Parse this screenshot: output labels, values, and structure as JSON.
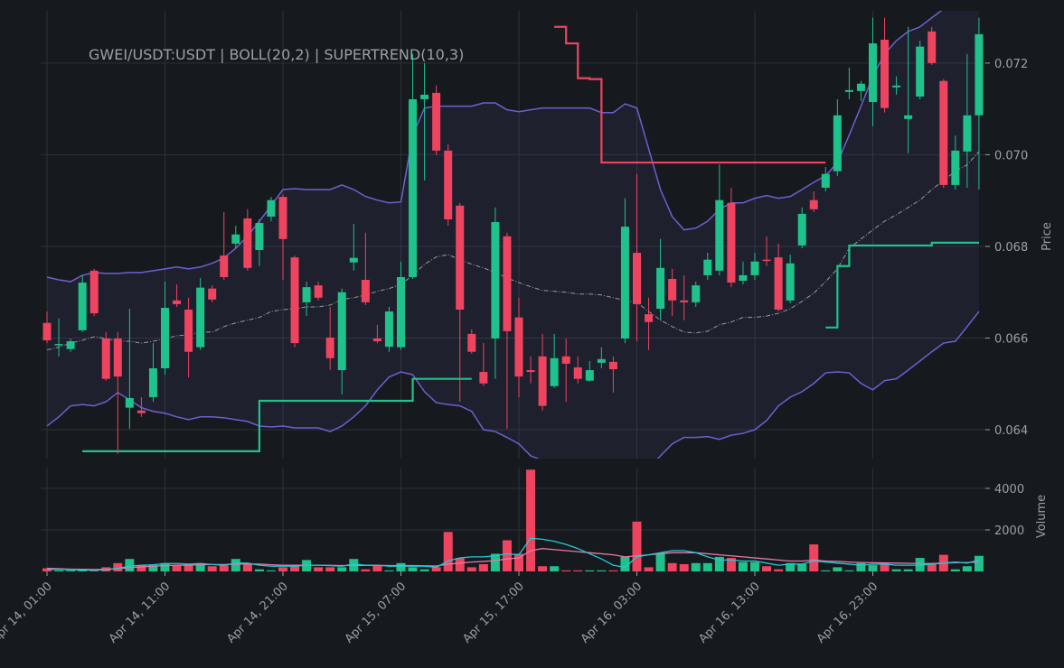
{
  "chart_data": [
    {
      "type": "candlestick",
      "title": "GWEI/USDT:USDT | BOLL(20,2) | SUPERTREND(10,3)",
      "y_label": "Price",
      "up_color": "#1fc28a",
      "down_color": "#ef4460",
      "band_color": "#6e5fcf",
      "mid_color": "#9a9a9a",
      "ylim": [
        0.06337,
        0.07314
      ],
      "yticks": [
        0.064,
        0.066,
        0.068,
        {
          "value": 0.07,
          "label": "0.070"
        },
        0.072
      ],
      "grid": true,
      "open": [
        0.06633,
        0.06585,
        0.06576,
        0.06617,
        0.06747,
        0.06599,
        0.06599,
        0.06448,
        0.06442,
        0.06471,
        0.06534,
        0.06682,
        0.06662,
        0.0658,
        0.06708,
        0.0678,
        0.06806,
        0.06861,
        0.06792,
        0.06865,
        0.06908,
        0.06776,
        0.06678,
        0.06715,
        0.06601,
        0.0653,
        0.06765,
        0.06727,
        0.06599,
        0.06581,
        0.0658,
        0.06733,
        0.07121,
        0.07135,
        0.07009,
        0.06889,
        0.06609,
        0.06526,
        0.06599,
        0.06822,
        0.06645,
        0.0653,
        0.0656,
        0.06495,
        0.0656,
        0.06536,
        0.06507,
        0.06546,
        0.06548,
        0.06599,
        0.06786,
        0.06652,
        0.06664,
        0.06729,
        0.06682,
        0.06678,
        0.06737,
        0.06747,
        0.06895,
        0.06725,
        0.06737,
        0.06771,
        0.06776,
        0.06682,
        0.06802,
        0.06901,
        0.06928,
        0.06964,
        0.07137,
        0.07139,
        0.07115,
        0.07251,
        0.07147,
        0.07078,
        0.07127,
        0.07269,
        0.07161,
        0.06934,
        0.07007,
        0.07086
      ],
      "high": [
        0.06658,
        0.06643,
        0.06599,
        0.06737,
        0.06751,
        0.06613,
        0.06613,
        0.06664,
        0.06471,
        0.06589,
        0.06723,
        0.06717,
        0.06688,
        0.06731,
        0.06715,
        0.06875,
        0.06845,
        0.06881,
        0.06859,
        0.06908,
        0.06914,
        0.0678,
        0.06723,
        0.06723,
        0.06668,
        0.06708,
        0.06849,
        0.0683,
        0.06629,
        0.06668,
        0.06767,
        0.0722,
        0.072,
        0.07151,
        0.07023,
        0.06895,
        0.06619,
        0.06589,
        0.06885,
        0.0683,
        0.06688,
        0.0656,
        0.06609,
        0.06609,
        0.06599,
        0.0656,
        0.0655,
        0.0658,
        0.0656,
        0.06905,
        0.06958,
        0.06688,
        0.06816,
        0.06751,
        0.06737,
        0.06723,
        0.06786,
        0.06979,
        0.06928,
        0.06767,
        0.06786,
        0.06822,
        0.06806,
        0.06782,
        0.06885,
        0.0692,
        0.06973,
        0.07121,
        0.0719,
        0.07161,
        0.07299,
        0.07299,
        0.07171,
        0.07279,
        0.07249,
        0.07279,
        0.07165,
        0.07042,
        0.0722,
        0.07299
      ],
      "low": [
        0.06589,
        0.0656,
        0.0657,
        0.06613,
        0.06648,
        0.06507,
        0.06347,
        0.06402,
        0.06428,
        0.06461,
        0.0652,
        0.06668,
        0.06514,
        0.06574,
        0.06678,
        0.06727,
        0.06796,
        0.06747,
        0.06757,
        0.06855,
        0.06727,
        0.0658,
        0.06648,
        0.06682,
        0.0653,
        0.06477,
        0.06747,
        0.06672,
        0.06589,
        0.0657,
        0.06574,
        0.06729,
        0.06944,
        0.06999,
        0.06845,
        0.06461,
        0.06566,
        0.06495,
        0.06511,
        0.06402,
        0.06471,
        0.06501,
        0.06442,
        0.06491,
        0.06461,
        0.06501,
        0.06505,
        0.06534,
        0.06481,
        0.06589,
        0.06593,
        0.06574,
        0.06639,
        0.06648,
        0.06639,
        0.06668,
        0.06727,
        0.06737,
        0.06711,
        0.06717,
        0.06727,
        0.06757,
        0.06658,
        0.06676,
        0.06796,
        0.06875,
        0.0692,
        0.06954,
        0.07121,
        0.07117,
        0.07062,
        0.07092,
        0.07131,
        0.07003,
        0.07121,
        0.07196,
        0.06928,
        0.06924,
        0.06928,
        0.06924
      ],
      "close": [
        0.06595,
        0.06587,
        0.06593,
        0.06721,
        0.06654,
        0.06511,
        0.06516,
        0.06469,
        0.06436,
        0.06534,
        0.06666,
        0.06674,
        0.0657,
        0.0671,
        0.06684,
        0.06733,
        0.06826,
        0.06753,
        0.06851,
        0.06901,
        0.06816,
        0.06589,
        0.06711,
        0.06688,
        0.06556,
        0.067,
        0.06775,
        0.06678,
        0.06593,
        0.06658,
        0.06733,
        0.07121,
        0.07131,
        0.07009,
        0.06859,
        0.06662,
        0.0657,
        0.06501,
        0.06853,
        0.06615,
        0.06516,
        0.06526,
        0.06452,
        0.06556,
        0.06544,
        0.06511,
        0.0653,
        0.06554,
        0.06532,
        0.06843,
        0.06674,
        0.06635,
        0.06753,
        0.06682,
        0.06678,
        0.06715,
        0.06771,
        0.06901,
        0.06721,
        0.06737,
        0.06767,
        0.06769,
        0.06662,
        0.06763,
        0.06871,
        0.06881,
        0.06958,
        0.07086,
        0.07141,
        0.07155,
        0.07243,
        0.07102,
        0.07151,
        0.07086,
        0.07236,
        0.072,
        0.06934,
        0.07009,
        0.07086,
        0.07263
      ],
      "boll_upper": [
        0.06733,
        0.06727,
        0.06723,
        0.06737,
        0.06743,
        0.06741,
        0.06741,
        0.06743,
        0.06743,
        0.06747,
        0.06751,
        0.06755,
        0.06751,
        0.06755,
        0.06763,
        0.06775,
        0.06796,
        0.06822,
        0.06855,
        0.06889,
        0.06924,
        0.06926,
        0.06924,
        0.06924,
        0.06924,
        0.06934,
        0.06924,
        0.06909,
        0.06901,
        0.06895,
        0.06897,
        0.07043,
        0.07102,
        0.07106,
        0.07106,
        0.07106,
        0.07106,
        0.07113,
        0.07113,
        0.07098,
        0.07094,
        0.07098,
        0.07102,
        0.07102,
        0.07102,
        0.07102,
        0.07102,
        0.07092,
        0.07092,
        0.07111,
        0.07102,
        0.07013,
        0.06924,
        0.06865,
        0.06836,
        0.0684,
        0.06855,
        0.06881,
        0.06895,
        0.06895,
        0.06905,
        0.06911,
        0.06905,
        0.06909,
        0.06924,
        0.0694,
        0.06954,
        0.06983,
        0.07043,
        0.07106,
        0.07171,
        0.0722,
        0.07249,
        0.07269,
        0.07279,
        0.07299,
        0.07318,
        0.07328,
        0.07338,
        0.07348
      ],
      "boll_mid": [
        0.06574,
        0.0658,
        0.06589,
        0.06595,
        0.06603,
        0.06599,
        0.06593,
        0.06593,
        0.06589,
        0.06593,
        0.06599,
        0.06605,
        0.06607,
        0.06613,
        0.06613,
        0.06625,
        0.06633,
        0.06639,
        0.06645,
        0.06658,
        0.06662,
        0.06664,
        0.06668,
        0.06668,
        0.06672,
        0.06684,
        0.06688,
        0.06694,
        0.06702,
        0.06708,
        0.06717,
        0.06737,
        0.06761,
        0.06777,
        0.06782,
        0.06771,
        0.06761,
        0.06753,
        0.06743,
        0.06731,
        0.06721,
        0.06712,
        0.06704,
        0.06702,
        0.067,
        0.06696,
        0.06696,
        0.06694,
        0.06688,
        0.06682,
        0.06678,
        0.06658,
        0.06639,
        0.06625,
        0.06613,
        0.06611,
        0.06615,
        0.06629,
        0.06635,
        0.06645,
        0.06645,
        0.06648,
        0.06654,
        0.06664,
        0.0668,
        0.06698,
        0.06723,
        0.06751,
        0.06796,
        0.06816,
        0.06836,
        0.06855,
        0.06869,
        0.06885,
        0.06901,
        0.06924,
        0.06944,
        0.06964,
        0.06978,
        0.07007
      ],
      "boll_lower": [
        0.06408,
        0.06428,
        0.06452,
        0.06455,
        0.06452,
        0.06461,
        0.06481,
        0.06465,
        0.06448,
        0.0644,
        0.06436,
        0.06428,
        0.06422,
        0.06428,
        0.06428,
        0.06426,
        0.06422,
        0.06418,
        0.06408,
        0.06406,
        0.06408,
        0.06404,
        0.06404,
        0.06404,
        0.06396,
        0.06408,
        0.06428,
        0.06452,
        0.06487,
        0.06515,
        0.06526,
        0.0652,
        0.06483,
        0.06459,
        0.06455,
        0.06452,
        0.0644,
        0.064,
        0.06396,
        0.06383,
        0.06369,
        0.06343,
        0.06333,
        0.06314,
        0.06294,
        0.06274,
        0.06255,
        0.06245,
        0.06255,
        0.06274,
        0.06294,
        0.06314,
        0.06343,
        0.06369,
        0.06383,
        0.06383,
        0.06385,
        0.06379,
        0.06388,
        0.06392,
        0.064,
        0.0642,
        0.06452,
        0.06471,
        0.06483,
        0.06501,
        0.06524,
        0.06526,
        0.06524,
        0.06501,
        0.06487,
        0.06507,
        0.06511,
        0.0653,
        0.0655,
        0.0657,
        0.06589,
        0.06593,
        0.06625,
        0.06658
      ],
      "supertrend_up": [
        null,
        null,
        null,
        0.06353,
        0.06353,
        0.06353,
        0.06353,
        0.06353,
        0.06353,
        0.06353,
        0.06353,
        0.06353,
        0.06353,
        0.06353,
        0.06353,
        0.06353,
        0.06353,
        0.06353,
        0.06463,
        0.06463,
        0.06463,
        0.06463,
        0.06463,
        0.06463,
        0.06463,
        0.06463,
        0.06463,
        0.06463,
        0.06463,
        0.06463,
        0.06463,
        0.06511,
        0.06511,
        0.06511,
        0.06511,
        0.06511,
        0.06511,
        null,
        null,
        null,
        null,
        null,
        null,
        null,
        null,
        null,
        null,
        null,
        null,
        null,
        null,
        null,
        null,
        null,
        null,
        null,
        null,
        null,
        null,
        null,
        null,
        null,
        null,
        null,
        null,
        null,
        0.06623,
        0.06757,
        0.06802,
        0.06802,
        0.06802,
        0.06802,
        0.06802,
        0.06802,
        0.06802,
        0.06808,
        0.06808,
        0.06808,
        0.06808,
        0.06808
      ],
      "supertrend_down": [
        null,
        null,
        null,
        null,
        null,
        null,
        null,
        null,
        null,
        null,
        null,
        null,
        null,
        null,
        null,
        null,
        null,
        null,
        null,
        null,
        null,
        null,
        null,
        null,
        null,
        null,
        null,
        null,
        null,
        null,
        null,
        null,
        null,
        null,
        null,
        null,
        null,
        null,
        null,
        null,
        null,
        null,
        null,
        0.07279,
        0.07243,
        0.07167,
        0.07165,
        0.06983,
        0.06983,
        0.06983,
        0.06983,
        0.06983,
        0.06983,
        0.06983,
        0.06983,
        0.06983,
        0.06983,
        0.06983,
        0.06983,
        0.06983,
        0.06983,
        0.06983,
        0.06983,
        0.06983,
        0.06983,
        0.06983,
        0.06983,
        null,
        null,
        null,
        null,
        null,
        null,
        null,
        null,
        null,
        null,
        null,
        null,
        null
      ]
    },
    {
      "type": "bar",
      "y_label": "Volume",
      "ylim": [
        0,
        5000
      ],
      "yticks": [
        2000,
        4000
      ],
      "grid": true,
      "fast_ma_color": "#22c9d6",
      "slow_ma_color": "#e17aa5",
      "xticks": [
        {
          "value": 0,
          "label": "Apr 14, 01:00"
        },
        {
          "value": 10,
          "label": "Apr 14, 11:00"
        },
        {
          "value": 20,
          "label": "Apr 14, 21:00"
        },
        {
          "value": 30,
          "label": "Apr 15, 07:00"
        },
        {
          "value": 40,
          "label": "Apr 15, 17:00"
        },
        {
          "value": 50,
          "label": "Apr 16, 03:00"
        },
        {
          "value": 60,
          "label": "Apr 16, 13:00"
        },
        {
          "value": 70,
          "label": "Apr 16, 23:00"
        }
      ],
      "values": [
        150,
        50,
        50,
        50,
        50,
        200,
        400,
        600,
        300,
        300,
        400,
        300,
        300,
        400,
        250,
        300,
        600,
        400,
        100,
        50,
        200,
        300,
        550,
        200,
        200,
        200,
        600,
        100,
        300,
        50,
        400,
        200,
        100,
        200,
        1900,
        650,
        200,
        350,
        850,
        1500,
        850,
        4900,
        250,
        250,
        50,
        50,
        50,
        50,
        50,
        700,
        2400,
        200,
        850,
        400,
        350,
        400,
        400,
        700,
        650,
        450,
        450,
        250,
        100,
        400,
        350,
        1300,
        50,
        200,
        50,
        400,
        300,
        400,
        100,
        100,
        650,
        400,
        800,
        100,
        250,
        750
      ],
      "ma_fast": [
        100,
        100,
        80,
        70,
        60,
        80,
        150,
        250,
        300,
        320,
        380,
        380,
        350,
        380,
        330,
        300,
        400,
        400,
        300,
        250,
        250,
        250,
        300,
        300,
        280,
        250,
        350,
        300,
        300,
        250,
        250,
        250,
        250,
        200,
        500,
        650,
        700,
        700,
        750,
        850,
        800,
        1600,
        1550,
        1450,
        1300,
        1100,
        850,
        600,
        300,
        200,
        700,
        800,
        900,
        1000,
        1000,
        900,
        700,
        550,
        550,
        500,
        500,
        400,
        300,
        350,
        350,
        500,
        450,
        400,
        350,
        300,
        350,
        350,
        300,
        300,
        300,
        350,
        400,
        450,
        400,
        550
      ],
      "ma_slow": [
        150,
        130,
        110,
        100,
        90,
        100,
        130,
        180,
        220,
        250,
        280,
        300,
        300,
        320,
        330,
        330,
        350,
        360,
        350,
        320,
        300,
        300,
        300,
        300,
        290,
        280,
        290,
        290,
        290,
        280,
        280,
        280,
        270,
        260,
        350,
        400,
        450,
        480,
        520,
        600,
        650,
        1000,
        1100,
        1050,
        1000,
        950,
        900,
        850,
        800,
        700,
        750,
        800,
        850,
        900,
        900,
        900,
        850,
        800,
        750,
        700,
        650,
        600,
        550,
        500,
        500,
        550,
        500,
        480,
        450,
        430,
        420,
        410,
        400,
        390,
        380,
        380,
        400,
        420,
        430,
        450
      ]
    }
  ]
}
